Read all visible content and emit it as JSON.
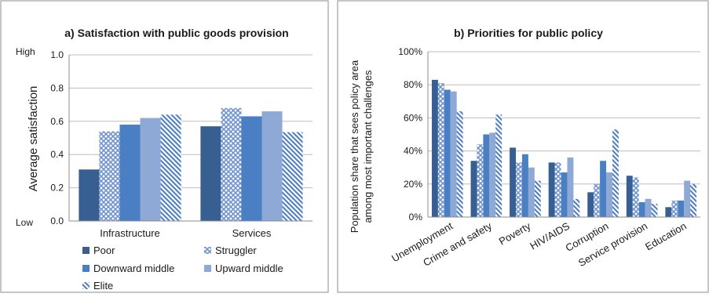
{
  "chart_data": [
    {
      "type": "bar",
      "title": "a) Satisfaction with public goods provision",
      "xlabel": "",
      "ylabel": "Average satisfaction",
      "ylim": [
        0,
        1
      ],
      "y_ticks": [
        "0.0",
        "0.2",
        "0.4",
        "0.6",
        "0.8",
        "1.0"
      ],
      "y_side_labels": {
        "high": "High",
        "low": "Low"
      },
      "categories": [
        "Infrastructure",
        "Services"
      ],
      "series": [
        {
          "name": "Poor",
          "values": [
            0.31,
            0.57
          ]
        },
        {
          "name": "Struggler",
          "values": [
            0.54,
            0.68
          ]
        },
        {
          "name": "Downward middle",
          "values": [
            0.58,
            0.63
          ]
        },
        {
          "name": "Upward middle",
          "values": [
            0.62,
            0.66
          ]
        },
        {
          "name": "Elite",
          "values": [
            0.64,
            0.535
          ]
        }
      ],
      "legend": "bottom",
      "grid": true
    },
    {
      "type": "bar",
      "title": "b) Priorities for public policy",
      "xlabel": "",
      "ylabel_line1": "Population  share that sees policy area",
      "ylabel_line2": "among most important challenges",
      "ylim": [
        0,
        100
      ],
      "y_ticks": [
        "0%",
        "20%",
        "40%",
        "60%",
        "80%",
        "100%"
      ],
      "categories": [
        "Unemployment",
        "Crime and safety",
        "Poverty",
        "HIV/AIDS",
        "Corruption",
        "Service provision",
        "Education"
      ],
      "series": [
        {
          "name": "Poor",
          "values": [
            83,
            34,
            42,
            33,
            15,
            25,
            6
          ]
        },
        {
          "name": "Struggler",
          "values": [
            81,
            44,
            33,
            33,
            20,
            24,
            10
          ]
        },
        {
          "name": "Downward middle",
          "values": [
            77,
            50,
            38,
            27,
            34,
            9,
            10
          ]
        },
        {
          "name": "Upward middle",
          "values": [
            76,
            51,
            30,
            36,
            27,
            11,
            22
          ]
        },
        {
          "name": "Elite",
          "values": [
            64,
            62,
            22,
            11,
            53,
            8,
            20
          ]
        }
      ],
      "grid": true
    }
  ],
  "colors": {
    "poor": "#375f92",
    "struggler": "#9fb8e0",
    "downward_middle": "#4a7fc4",
    "upward_middle": "#8ea9d6",
    "elite": "#5a86c8",
    "grid": "#bdbdbd",
    "axis": "#8c8c8c"
  }
}
